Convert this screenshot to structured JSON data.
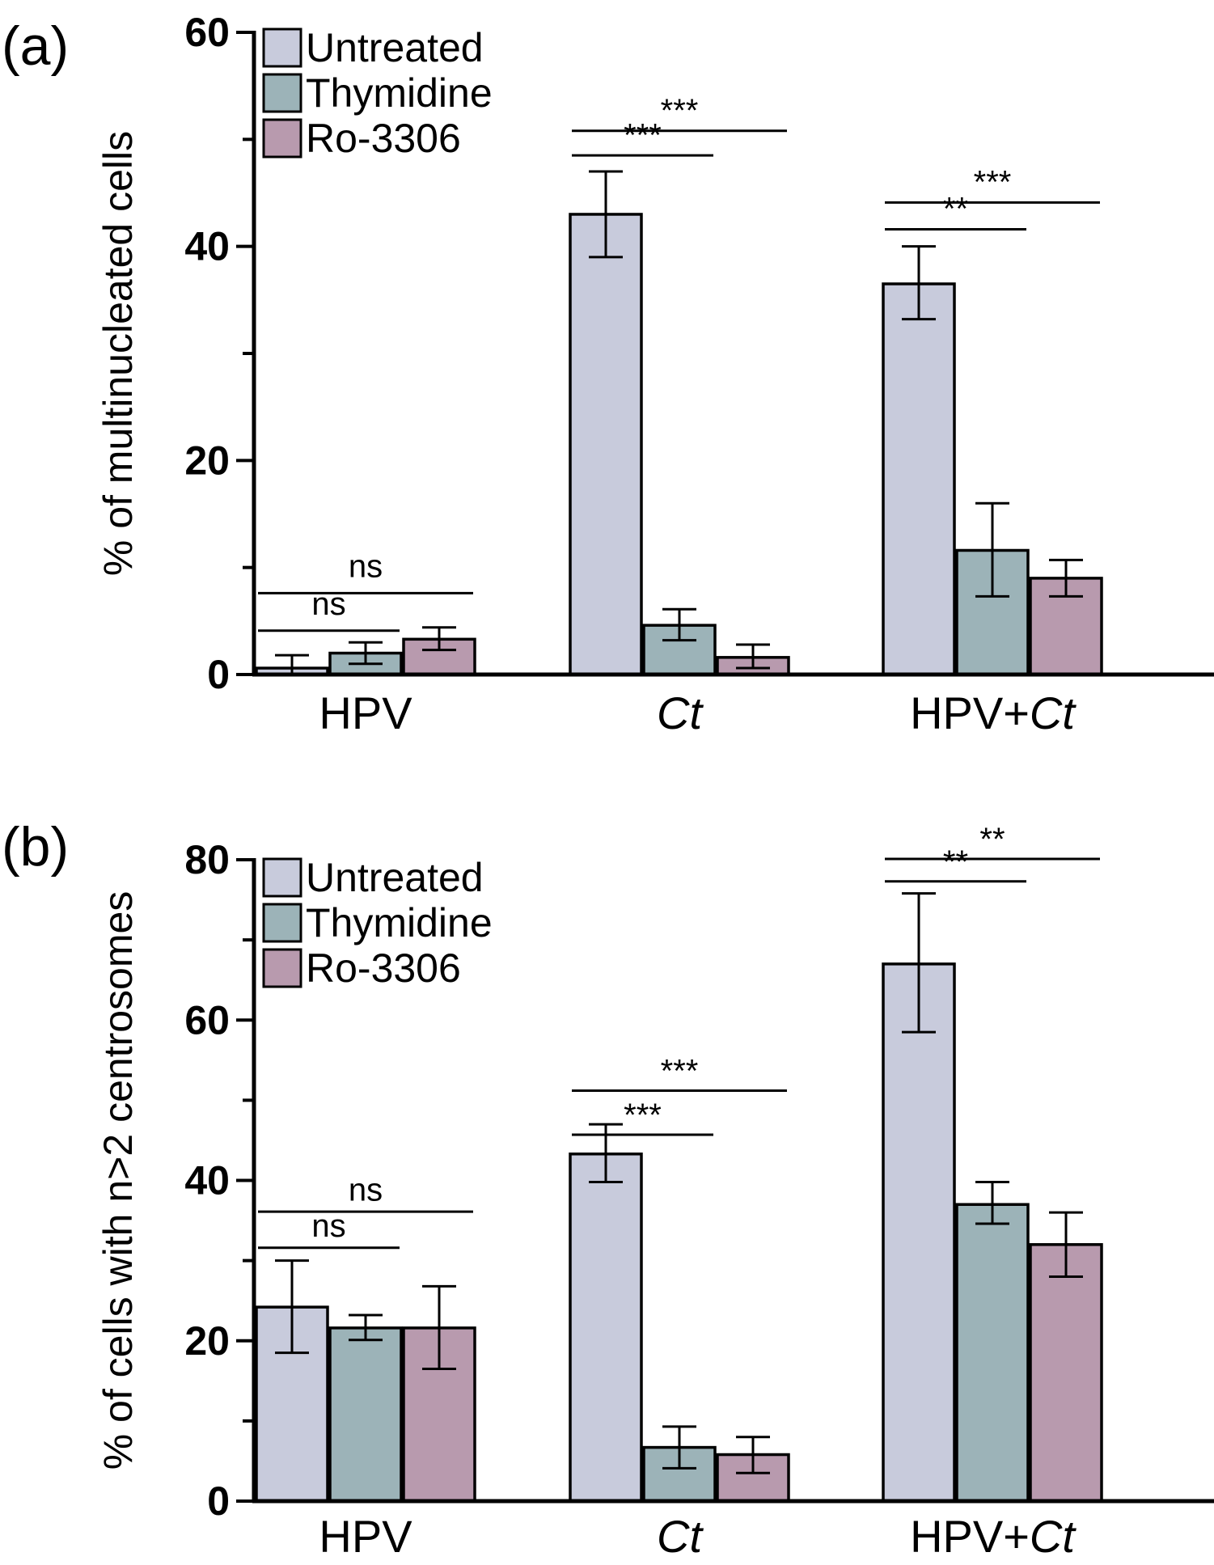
{
  "chart_data": [
    {
      "panel_label": "(a)",
      "type": "bar",
      "categories": [
        {
          "pre": "HPV",
          "it": ""
        },
        {
          "pre": "",
          "it": "Ct"
        },
        {
          "pre": "HPV+",
          "it": "Ct"
        }
      ],
      "series": [
        {
          "name": "Untreated",
          "color": "#c8cbdc",
          "values": [
            0.6,
            43.0,
            36.5
          ],
          "err_low": [
            0.0,
            39.0,
            33.2
          ],
          "err_high": [
            1.8,
            47.0,
            40.0
          ]
        },
        {
          "name": "Thymidine",
          "color": "#9cb3b8",
          "values": [
            2.0,
            4.6,
            11.6
          ],
          "err_low": [
            1.0,
            3.2,
            7.3
          ],
          "err_high": [
            3.0,
            6.1,
            16.0
          ]
        },
        {
          "name": "Ro-3306",
          "color": "#b89aae",
          "values": [
            3.3,
            1.6,
            9.0
          ],
          "err_low": [
            2.3,
            0.6,
            7.3
          ],
          "err_high": [
            4.4,
            2.8,
            10.7
          ]
        }
      ],
      "ylabel": "% of multinucleated cells",
      "ylim": [
        0,
        60
      ],
      "yticks": [
        0,
        20,
        40,
        60
      ],
      "legend_position": "top-left",
      "significance": [
        {
          "group": 0,
          "from": 0,
          "to": 1,
          "label": "ns",
          "line_y": 4.1,
          "label_y": 5.6
        },
        {
          "group": 0,
          "from": 0,
          "to": 2,
          "label": "ns",
          "line_y": 7.6,
          "label_y": 9.1
        },
        {
          "group": 1,
          "from": 0,
          "to": 1,
          "label": "***",
          "line_y": 48.5,
          "label_y": 49.4
        },
        {
          "group": 1,
          "from": 0,
          "to": 2,
          "label": "***",
          "line_y": 50.8,
          "label_y": 51.7
        },
        {
          "group": 2,
          "from": 0,
          "to": 1,
          "label": "**",
          "line_y": 41.6,
          "label_y": 42.5
        },
        {
          "group": 2,
          "from": 0,
          "to": 2,
          "label": "***",
          "line_y": 44.1,
          "label_y": 45.0
        }
      ]
    },
    {
      "panel_label": "(b)",
      "type": "bar",
      "categories": [
        {
          "pre": "HPV",
          "it": ""
        },
        {
          "pre": "",
          "it": "Ct"
        },
        {
          "pre": "HPV+",
          "it": "Ct"
        }
      ],
      "series": [
        {
          "name": "Untreated",
          "color": "#c8cbdc",
          "values": [
            24.2,
            43.3,
            67.0
          ],
          "err_low": [
            18.5,
            39.8,
            58.5
          ],
          "err_high": [
            30.0,
            47.0,
            75.8
          ]
        },
        {
          "name": "Thymidine",
          "color": "#9cb3b8",
          "values": [
            21.6,
            6.7,
            37.0
          ],
          "err_low": [
            20.1,
            4.1,
            34.6
          ],
          "err_high": [
            23.2,
            9.3,
            39.8
          ]
        },
        {
          "name": "Ro-3306",
          "color": "#b89aae",
          "values": [
            21.6,
            5.8,
            32.0
          ],
          "err_low": [
            16.5,
            3.5,
            28.0
          ],
          "err_high": [
            26.8,
            8.0,
            36.0
          ]
        }
      ],
      "ylabel": "% of cells with n>2 centrosomes",
      "ylim": [
        0,
        80
      ],
      "yticks": [
        0,
        20,
        40,
        60,
        80
      ],
      "legend_position": "top-left",
      "significance": [
        {
          "group": 0,
          "from": 0,
          "to": 1,
          "label": "ns",
          "line_y": 31.6,
          "label_y": 33.0
        },
        {
          "group": 0,
          "from": 0,
          "to": 2,
          "label": "ns",
          "line_y": 36.1,
          "label_y": 37.5
        },
        {
          "group": 1,
          "from": 0,
          "to": 1,
          "label": "***",
          "line_y": 45.7,
          "label_y": 46.8
        },
        {
          "group": 1,
          "from": 0,
          "to": 2,
          "label": "***",
          "line_y": 51.2,
          "label_y": 52.3
        },
        {
          "group": 2,
          "from": 0,
          "to": 1,
          "label": "**",
          "line_y": 77.3,
          "label_y": 78.4
        },
        {
          "group": 2,
          "from": 0,
          "to": 2,
          "label": "**",
          "line_y": 80.1,
          "label_y": 81.2
        }
      ]
    }
  ]
}
